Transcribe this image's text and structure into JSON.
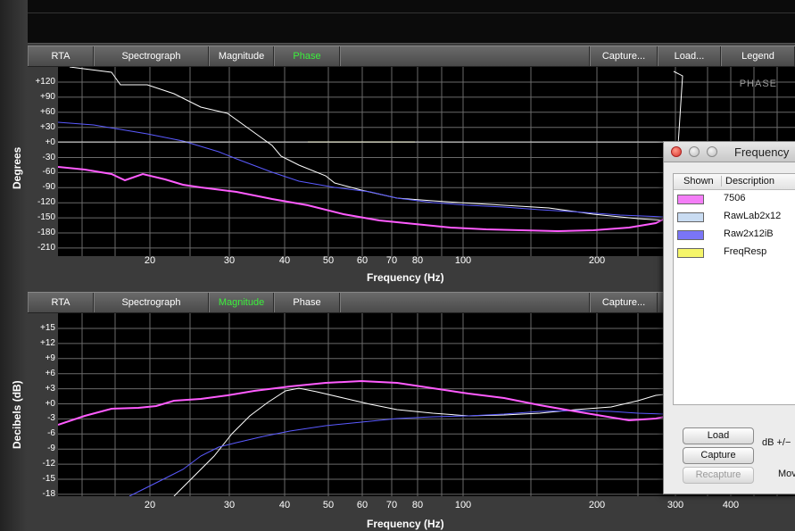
{
  "top_tabs": [
    {
      "label": "RTA",
      "active": false
    },
    {
      "label": "Spectrograph",
      "active": false
    },
    {
      "label": "Magnitude",
      "active": false
    },
    {
      "label": "Phase",
      "active": true
    },
    {
      "label": "Capture...",
      "active": false
    },
    {
      "label": "Load...",
      "active": false
    },
    {
      "label": "Legend",
      "active": false
    }
  ],
  "bottom_tabs": [
    {
      "label": "RTA",
      "active": false
    },
    {
      "label": "Spectrograph",
      "active": false
    },
    {
      "label": "Magnitude",
      "active": true
    },
    {
      "label": "Phase",
      "active": false
    },
    {
      "label": "Capture...",
      "active": false
    }
  ],
  "phase_plot": {
    "ylabel": "Degrees",
    "xlabel": "Frequency (Hz)",
    "tag": "PHASE",
    "yticks": [
      "+120",
      "+90",
      "+60",
      "+30",
      "+0",
      "-30",
      "-60",
      "-90",
      "-120",
      "-150",
      "-180",
      "-210"
    ],
    "xticks": [
      "20",
      "30",
      "40",
      "50",
      "60",
      "70",
      "80",
      "100",
      "200"
    ]
  },
  "magnitude_plot": {
    "ylabel": "Decibels (dB)",
    "xlabel": "Frequency (Hz)",
    "yticks": [
      "+15",
      "+12",
      "+9",
      "+6",
      "+3",
      "+0",
      "-3",
      "-6",
      "-9",
      "-12",
      "-15",
      "-18"
    ],
    "xticks": [
      "20",
      "30",
      "40",
      "50",
      "60",
      "70",
      "80",
      "100",
      "200",
      "300",
      "400"
    ]
  },
  "colors": {
    "series_7506": "#ff5cff",
    "series_rawlab": "#ffffff",
    "series_raw2x12": "#5a5aff",
    "series_freqresp": "#ffff33",
    "active_tab": "#3cf03c"
  },
  "legend_window": {
    "title": "Frequency",
    "columns": {
      "shown": "Shown",
      "description": "Description"
    },
    "rows": [
      {
        "color": "#f47ef7",
        "label": "7506"
      },
      {
        "color": "#c9dcf2",
        "label": "RawLab2x12"
      },
      {
        "color": "#7a75f6",
        "label": "Raw2x12iB"
      },
      {
        "color": "#f5f56a",
        "label": "FreqResp"
      }
    ],
    "buttons": {
      "load": "Load",
      "capture": "Capture",
      "recapture": "Recapture"
    },
    "db_label": "dB +/−",
    "mov_label": "Mov"
  }
}
